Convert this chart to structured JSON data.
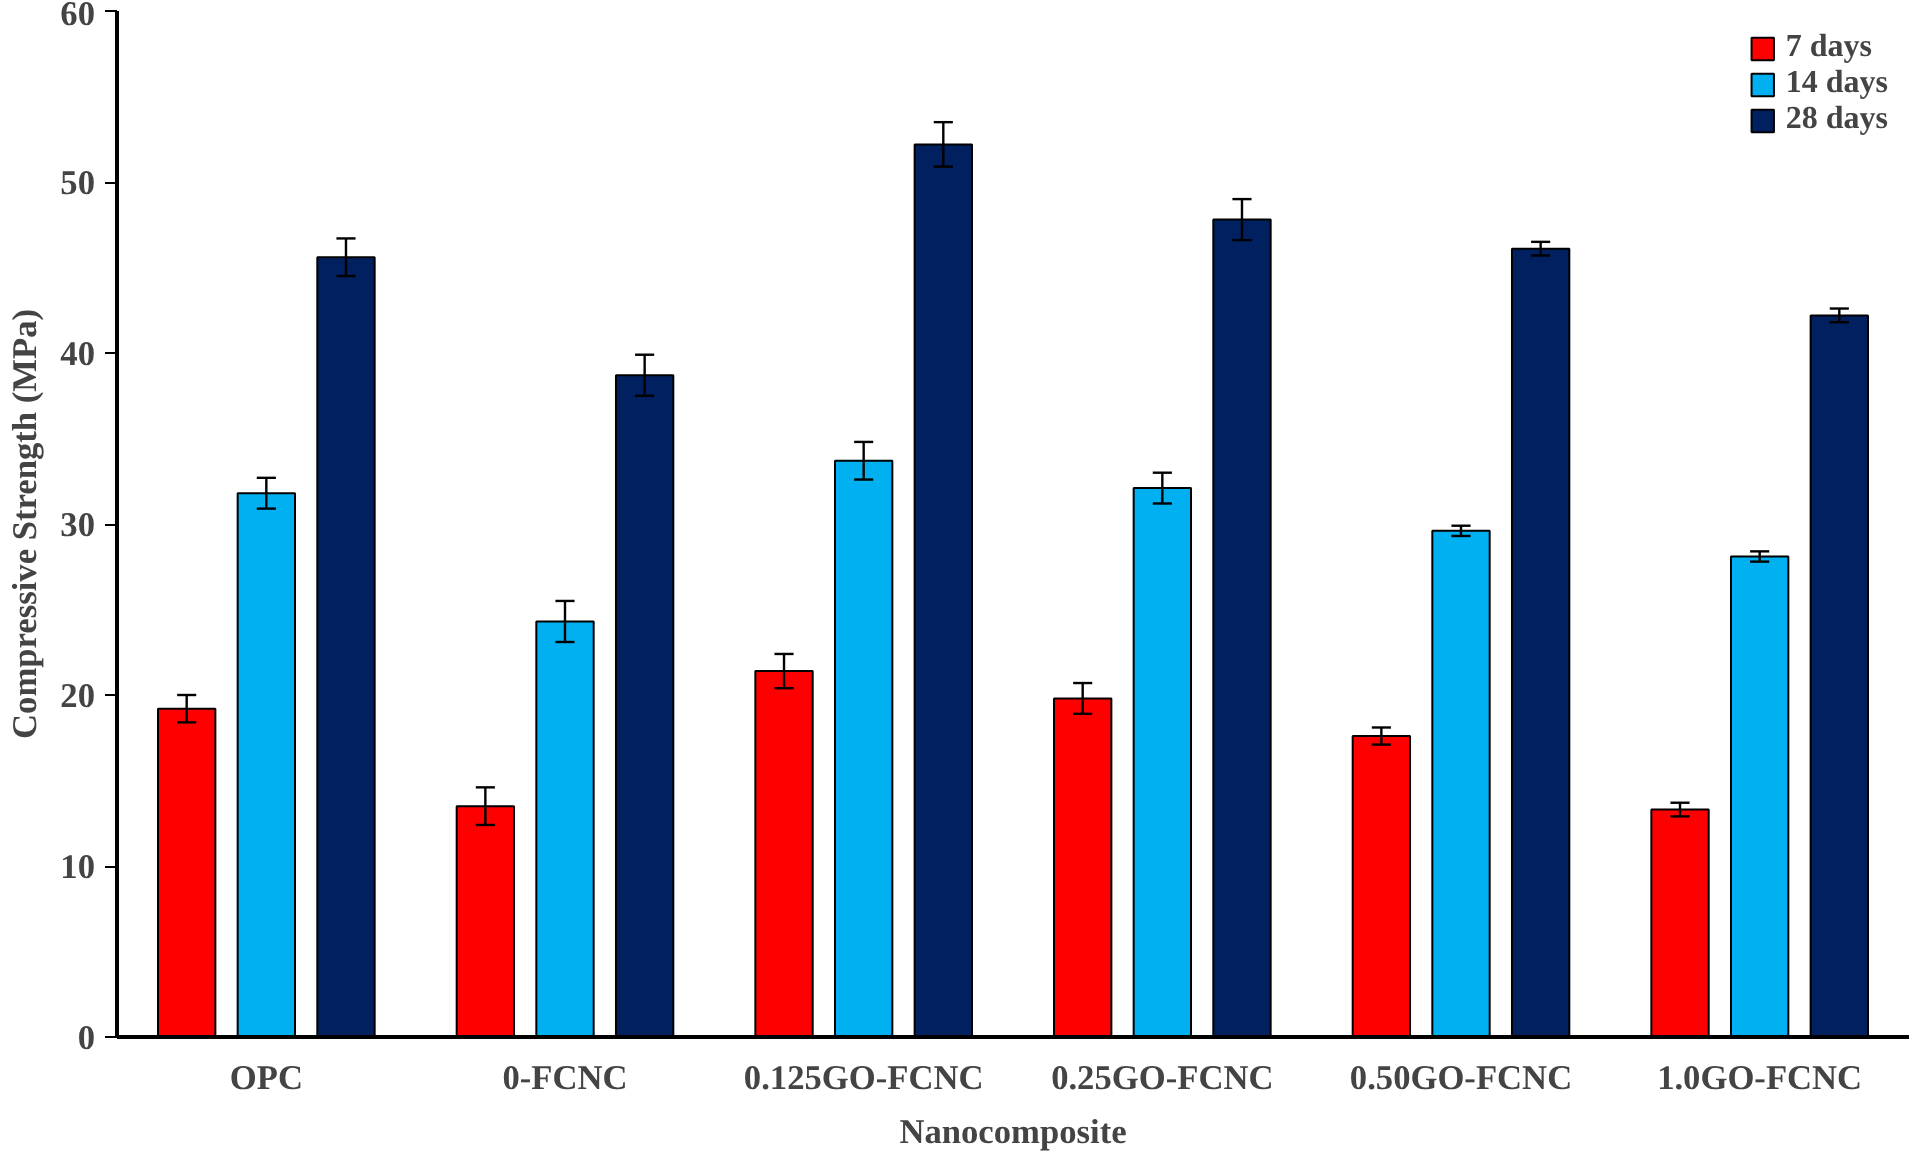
{
  "chart_data": {
    "type": "bar",
    "xlabel": "Nanocomposite",
    "ylabel": "Compressive Strength (MPa)",
    "categories": [
      "OPC",
      "0-FCNC",
      "0.125GO-FCNC",
      "0.25GO-FCNC",
      "0.50GO-FCNC",
      "1.0GO-FCNC"
    ],
    "series": [
      {
        "name": "7 days",
        "color": "#ff0000",
        "values": [
          19.2,
          13.5,
          21.4,
          19.8,
          17.6,
          13.3
        ],
        "errors": [
          0.8,
          1.1,
          1.0,
          0.9,
          0.5,
          0.4
        ]
      },
      {
        "name": "14 days",
        "color": "#00b0f0",
        "values": [
          31.8,
          24.3,
          33.7,
          32.1,
          29.6,
          28.1
        ],
        "errors": [
          0.9,
          1.2,
          1.1,
          0.9,
          0.3,
          0.3
        ]
      },
      {
        "name": "28 days",
        "color": "#002060",
        "values": [
          45.6,
          38.7,
          52.2,
          47.8,
          46.1,
          42.2
        ],
        "errors": [
          1.1,
          1.2,
          1.3,
          1.2,
          0.4,
          0.4
        ]
      }
    ],
    "ylim": [
      0,
      60
    ],
    "yticks": [
      0,
      10,
      20,
      30,
      40,
      50,
      60
    ],
    "grid": false,
    "legend": "top right"
  }
}
